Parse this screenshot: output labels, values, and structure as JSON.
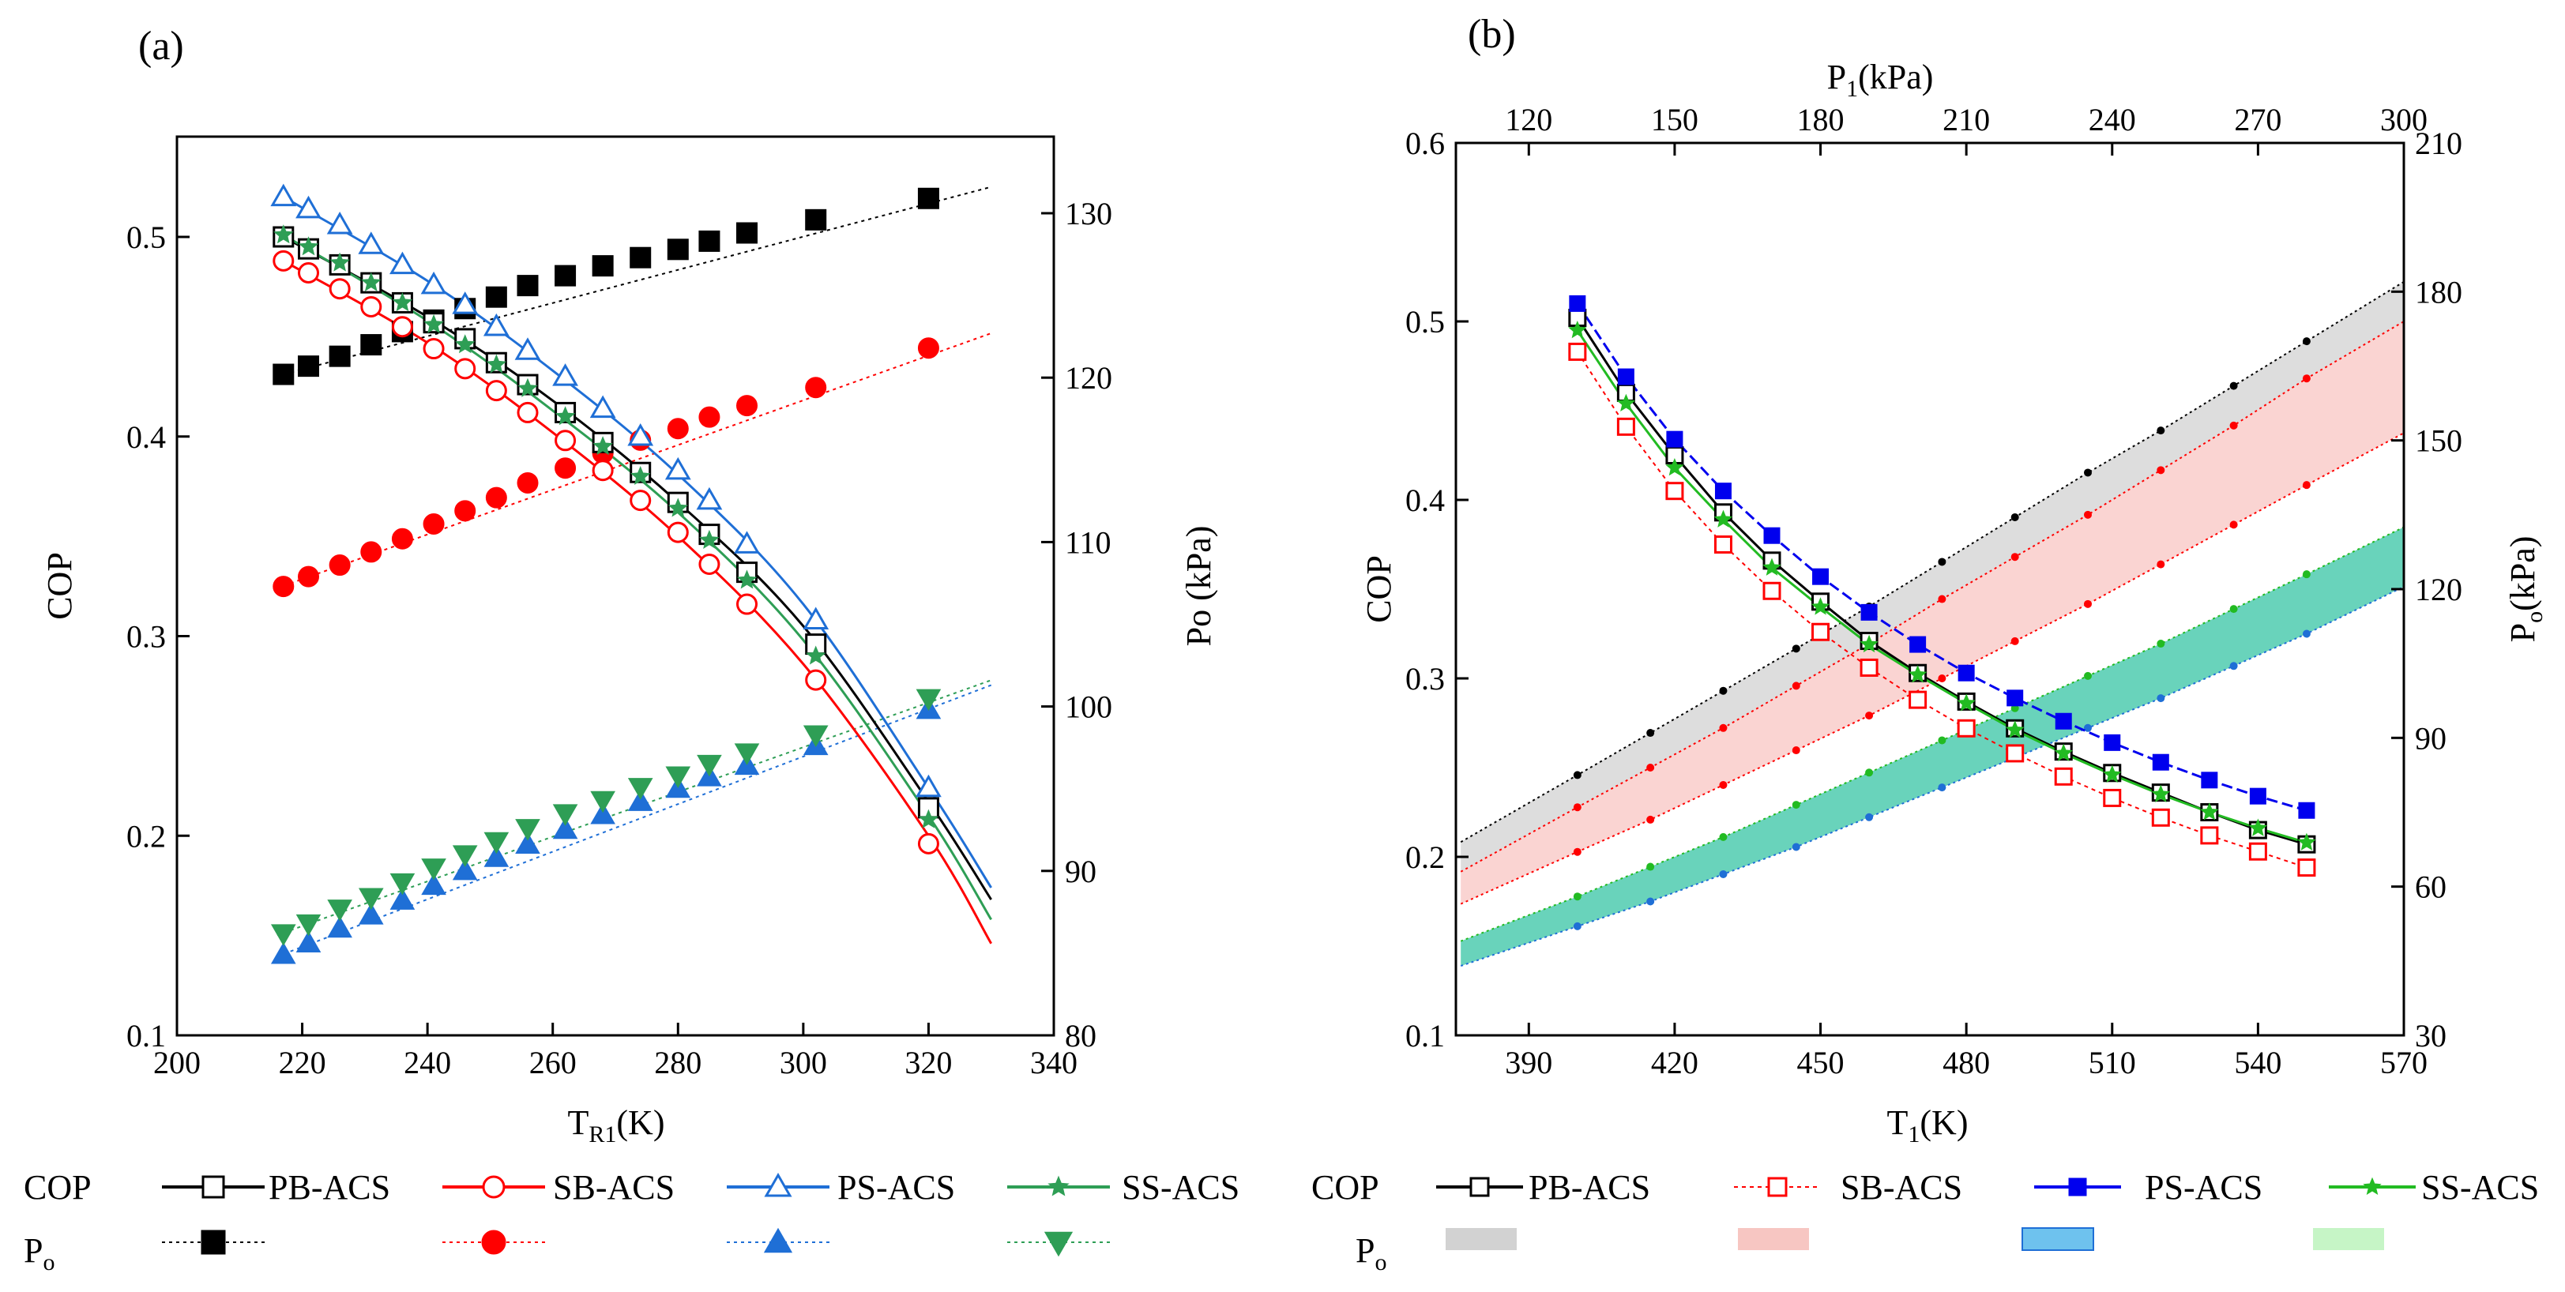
{
  "chart_data": [
    {
      "type": "line",
      "panel_label": "(a)",
      "xlabel": "T",
      "xlabel_sub": "R1",
      "xlabel_unit": "(K)",
      "ylabel": "COP",
      "y2label": "Po (kPa)",
      "xlim": [
        200,
        340
      ],
      "ylim": [
        0.1,
        0.55
      ],
      "y2lim": [
        80,
        133
      ],
      "xticks": [
        "200",
        "220",
        "240",
        "260",
        "280",
        "300",
        "320",
        "340"
      ],
      "yticks": [
        "0.1",
        "0.2",
        "0.3",
        "0.4",
        "0.5"
      ],
      "y2ticks": [
        "80",
        "90",
        "100",
        "110",
        "120",
        "130"
      ],
      "cop_series": [
        {
          "name": "PB-ACS",
          "color": "#000000",
          "marker": "open-square",
          "x": [
            217,
            221,
            226,
            231,
            236,
            241,
            246,
            251,
            256,
            262,
            268,
            274,
            280,
            285,
            291,
            302,
            320
          ],
          "values": [
            0.5,
            0.494,
            0.486,
            0.477,
            0.467,
            0.457,
            0.449,
            0.437,
            0.426,
            0.412,
            0.397,
            0.382,
            0.367,
            0.351,
            0.332,
            0.296,
            0.214
          ],
          "curve_x": [
            217,
            240,
            260,
            280,
            300,
            320,
            330
          ],
          "curve_y": [
            0.5,
            0.46,
            0.418,
            0.367,
            0.305,
            0.217,
            0.168
          ]
        },
        {
          "name": "SB-ACS",
          "color": "#ff0000",
          "marker": "open-circle",
          "x": [
            217,
            221,
            226,
            231,
            236,
            241,
            246,
            251,
            256,
            262,
            268,
            274,
            280,
            285,
            291,
            302,
            320
          ],
          "values": [
            0.488,
            0.482,
            0.474,
            0.465,
            0.455,
            0.444,
            0.434,
            0.423,
            0.412,
            0.398,
            0.383,
            0.368,
            0.352,
            0.336,
            0.316,
            0.278,
            0.196
          ],
          "curve_x": [
            217,
            240,
            260,
            280,
            300,
            320,
            330
          ],
          "curve_y": [
            0.488,
            0.447,
            0.402,
            0.35,
            0.286,
            0.2,
            0.146
          ]
        },
        {
          "name": "PS-ACS",
          "color": "#1f6fd6",
          "marker": "open-triangle",
          "x": [
            217,
            221,
            226,
            231,
            236,
            241,
            246,
            251,
            256,
            262,
            268,
            274,
            280,
            285,
            291,
            302,
            320
          ],
          "values": [
            0.52,
            0.514,
            0.506,
            0.496,
            0.486,
            0.476,
            0.466,
            0.455,
            0.443,
            0.43,
            0.414,
            0.4,
            0.383,
            0.368,
            0.346,
            0.308,
            0.224
          ],
          "curve_x": [
            217,
            240,
            260,
            280,
            300,
            320,
            330
          ],
          "curve_y": [
            0.52,
            0.478,
            0.433,
            0.381,
            0.316,
            0.224,
            0.174
          ]
        },
        {
          "name": "SS-ACS",
          "color": "#2e9e55",
          "marker": "star",
          "x": [
            217,
            221,
            226,
            231,
            236,
            241,
            246,
            251,
            256,
            262,
            268,
            274,
            280,
            285,
            291,
            302,
            320
          ],
          "values": [
            0.501,
            0.495,
            0.487,
            0.477,
            0.467,
            0.456,
            0.446,
            0.436,
            0.424,
            0.41,
            0.395,
            0.38,
            0.364,
            0.348,
            0.328,
            0.29,
            0.208
          ],
          "curve_x": [
            217,
            240,
            260,
            280,
            300,
            320,
            330
          ],
          "curve_y": [
            0.501,
            0.458,
            0.413,
            0.362,
            0.298,
            0.21,
            0.158
          ]
        }
      ],
      "po_series": [
        {
          "name": "PB-ACS",
          "color": "#000000",
          "marker": "filled-square",
          "x": [
            217,
            221,
            226,
            231,
            236,
            241,
            246,
            251,
            256,
            262,
            268,
            274,
            280,
            285,
            291,
            302,
            320
          ],
          "values": [
            120.2,
            120.7,
            121.3,
            122,
            122.8,
            123.5,
            124.2,
            124.9,
            125.6,
            126.2,
            126.8,
            127.3,
            127.8,
            128.3,
            128.8,
            129.6,
            130.9
          ],
          "trend": [
            [
              216,
              120.1
            ],
            [
              330,
              131.6
            ]
          ]
        },
        {
          "name": "SB-ACS",
          "color": "#ff0000",
          "marker": "filled-circle",
          "x": [
            217,
            221,
            226,
            231,
            236,
            241,
            246,
            251,
            256,
            262,
            268,
            274,
            280,
            285,
            291,
            302,
            320
          ],
          "values": [
            107.3,
            107.9,
            108.6,
            109.4,
            110.2,
            111.1,
            111.9,
            112.7,
            113.6,
            114.5,
            115.4,
            116.2,
            116.9,
            117.6,
            118.3,
            119.4,
            121.8
          ],
          "trend": [
            [
              216,
              107.2
            ],
            [
              330,
              122.7
            ]
          ]
        },
        {
          "name": "PS-ACS",
          "color": "#1f6fd6",
          "marker": "filled-triangle",
          "x": [
            217,
            221,
            226,
            231,
            236,
            241,
            246,
            251,
            256,
            262,
            268,
            274,
            280,
            285,
            291,
            302,
            320
          ],
          "values": [
            84.9,
            85.6,
            86.5,
            87.3,
            88.2,
            89.1,
            90,
            90.8,
            91.6,
            92.5,
            93.4,
            94.2,
            95,
            95.7,
            96.4,
            97.6,
            99.8
          ],
          "trend": [
            [
              216,
              84.8
            ],
            [
              330,
              101.3
            ]
          ]
        },
        {
          "name": "SS-ACS",
          "color": "#2e9e55",
          "marker": "filled-down-triangle",
          "x": [
            217,
            221,
            226,
            231,
            236,
            241,
            246,
            251,
            256,
            262,
            268,
            274,
            280,
            285,
            291,
            302,
            320
          ],
          "values": [
            86.2,
            86.8,
            87.7,
            88.4,
            89.3,
            90.2,
            91,
            91.8,
            92.6,
            93.5,
            94.3,
            95.1,
            95.8,
            96.5,
            97.2,
            98.3,
            100.5
          ],
          "trend": [
            [
              216,
              86.1
            ],
            [
              330,
              101.6
            ]
          ]
        }
      ]
    },
    {
      "type": "line",
      "panel_label": "(b)",
      "xlabel": "T",
      "xlabel_sub": "1",
      "xlabel_unit": "(K)",
      "x2label": "P",
      "x2label_sub": "1",
      "x2label_unit": "(kPa)",
      "ylabel": "COP",
      "y2label": "P",
      "y2label_sub": "o",
      "y2label_unit": "(kPa)",
      "xlim": [
        375,
        570
      ],
      "x2lim": [
        105,
        300
      ],
      "ylim": [
        0.1,
        0.6
      ],
      "y2lim": [
        30,
        210
      ],
      "xticks": [
        "390",
        "420",
        "450",
        "480",
        "510",
        "540",
        "570"
      ],
      "x2ticks": [
        "120",
        "150",
        "180",
        "210",
        "240",
        "270",
        "300"
      ],
      "yticks": [
        "0.1",
        "0.2",
        "0.3",
        "0.4",
        "0.5",
        "0.6"
      ],
      "y2ticks": [
        "30",
        "60",
        "90",
        "120",
        "150",
        "180",
        "210"
      ],
      "cop_series": [
        {
          "name": "PB-ACS",
          "color": "#000000",
          "marker": "open-square",
          "x": [
            400,
            410,
            420,
            430,
            440,
            450,
            460,
            470,
            480,
            490,
            500,
            510,
            520,
            530,
            540,
            550
          ],
          "values": [
            0.502,
            0.46,
            0.425,
            0.393,
            0.366,
            0.343,
            0.321,
            0.303,
            0.287,
            0.272,
            0.259,
            0.247,
            0.236,
            0.225,
            0.215,
            0.207
          ]
        },
        {
          "name": "SB-ACS",
          "color": "#ff0000",
          "marker": "open-square",
          "x": [
            400,
            410,
            420,
            430,
            440,
            450,
            460,
            470,
            480,
            490,
            500,
            510,
            520,
            530,
            540,
            550
          ],
          "values": [
            0.483,
            0.441,
            0.405,
            0.375,
            0.349,
            0.326,
            0.306,
            0.288,
            0.272,
            0.258,
            0.245,
            0.233,
            0.222,
            0.212,
            0.203,
            0.194
          ]
        },
        {
          "name": "PS-ACS",
          "color": "#0000ee",
          "marker": "filled-square",
          "x": [
            400,
            410,
            420,
            430,
            440,
            450,
            460,
            470,
            480,
            490,
            500,
            510,
            520,
            530,
            540,
            550
          ],
          "values": [
            0.51,
            0.469,
            0.434,
            0.405,
            0.38,
            0.357,
            0.337,
            0.319,
            0.303,
            0.289,
            0.276,
            0.264,
            0.253,
            0.243,
            0.234,
            0.226
          ]
        },
        {
          "name": "SS-ACS",
          "color": "#22bb22",
          "marker": "star",
          "x": [
            400,
            410,
            420,
            430,
            440,
            450,
            460,
            470,
            480,
            490,
            500,
            510,
            520,
            530,
            540,
            550
          ],
          "values": [
            0.495,
            0.454,
            0.418,
            0.389,
            0.362,
            0.34,
            0.319,
            0.302,
            0.286,
            0.271,
            0.258,
            0.246,
            0.235,
            0.225,
            0.216,
            0.208
          ]
        }
      ],
      "po_bands": [
        {
          "name": "PB-ACS",
          "fill": "#d2d2d2",
          "opacity": 0.75,
          "upper": {
            "color": "#000000",
            "x": [
              376,
              400,
              415,
              430,
              445,
              460,
              475,
              490,
              505,
              520,
              535,
              550,
              570
            ],
            "values": [
              69,
              82.5,
              91,
              99.5,
              108,
              116.5,
              125.5,
              134.5,
              143.5,
              152,
              161,
              170,
              182
            ]
          },
          "lower": {
            "color": "#ff0000",
            "x": [
              376,
              400,
              415,
              430,
              445,
              460,
              475,
              490,
              505,
              520,
              535,
              550,
              570
            ],
            "values": [
              63,
              76,
              84,
              92,
              100.5,
              109,
              118,
              126.5,
              135,
              144,
              153,
              162.5,
              174
            ]
          }
        },
        {
          "name": "SB-ACS",
          "fill": "#f7b8b4",
          "opacity": 0.6,
          "upper": {
            "color": "#ff0000",
            "x": [
              376,
              400,
              415,
              430,
              445,
              460,
              475,
              490,
              505,
              520,
              535,
              550,
              570
            ],
            "values": [
              63,
              76,
              84,
              92,
              100.5,
              109,
              118,
              126.5,
              135,
              144,
              153,
              162.5,
              174
            ]
          },
          "lower": {
            "color": "#ff0000",
            "x": [
              376,
              400,
              415,
              430,
              445,
              460,
              475,
              490,
              505,
              520,
              535,
              550,
              570
            ],
            "values": [
              56.5,
              67,
              73.5,
              80.5,
              87.5,
              94.5,
              102,
              109.5,
              117,
              125,
              133,
              141,
              151.5
            ]
          }
        },
        {
          "name": "PS-ACS",
          "fill": "#7fc6ea",
          "opacity": 0.0,
          "upper": {
            "color": "#22bb22",
            "x": [
              376,
              400,
              415,
              430,
              445,
              460,
              475,
              490,
              505,
              520,
              535,
              550,
              570
            ],
            "values": [
              49,
              58,
              64,
              70,
              76.5,
              83,
              89.5,
              96,
              102.5,
              109,
              116,
              123,
              132.5
            ]
          },
          "lower": {
            "color": "#1f6fd6",
            "x": [
              376,
              400,
              415,
              430,
              445,
              460,
              475,
              490,
              505,
              520,
              535,
              550,
              570
            ],
            "values": [
              44,
              52,
              57,
              62.5,
              68,
              74,
              80,
              86,
              92,
              98,
              104.5,
              111,
              120.5
            ]
          }
        },
        {
          "name": "SS-ACS",
          "fill": "#3fc7a8",
          "opacity": 0.78,
          "upper": {
            "color": "#22bb22",
            "x": [
              376,
              400,
              415,
              430,
              445,
              460,
              475,
              490,
              505,
              520,
              535,
              550,
              570
            ],
            "values": [
              49,
              58,
              64,
              70,
              76.5,
              83,
              89.5,
              96,
              102.5,
              109,
              116,
              123,
              132.5
            ]
          },
          "lower": {
            "color": "#1f6fd6",
            "x": [
              376,
              400,
              415,
              430,
              445,
              460,
              475,
              490,
              505,
              520,
              535,
              550,
              570
            ],
            "values": [
              44,
              52,
              57,
              62.5,
              68,
              74,
              80,
              86,
              92,
              98,
              104.5,
              111,
              120.5
            ]
          }
        }
      ]
    }
  ],
  "legend_a": {
    "row_labels": [
      "COP",
      "P"
    ],
    "row2_sub": "o",
    "entries": [
      "PB-ACS",
      "SB-ACS",
      "PS-ACS",
      "SS-ACS"
    ]
  },
  "legend_b": {
    "row_labels": [
      "COP",
      "P"
    ],
    "row2_sub": "o",
    "entries": [
      "PB-ACS",
      "SB-ACS",
      "PS-ACS",
      "SS-ACS"
    ],
    "swatch_colors": [
      "#d2d2d2",
      "#f7c6c2",
      "#6ec2ee",
      "#c6f5c6"
    ]
  }
}
